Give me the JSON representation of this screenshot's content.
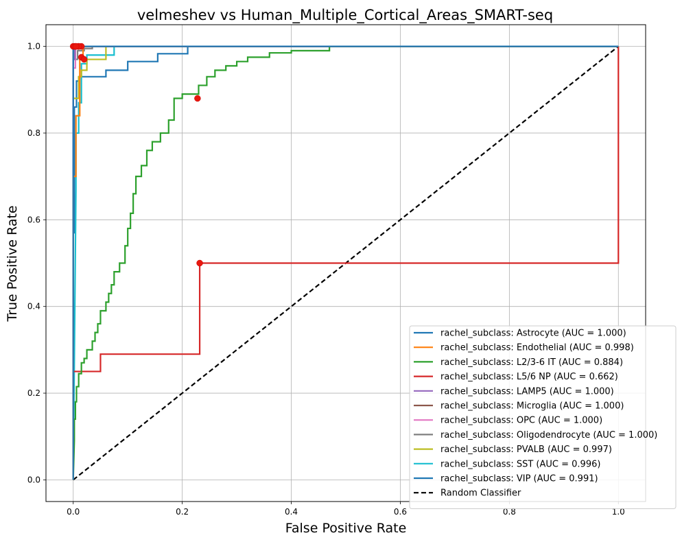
{
  "chart_data": {
    "type": "line",
    "title": "velmeshev vs Human_Multiple_Cortical_Areas_SMART-seq",
    "xlabel": "False Positive Rate",
    "ylabel": "True Positive Rate",
    "xlim": [
      -0.05,
      1.05
    ],
    "ylim": [
      -0.05,
      1.05
    ],
    "xticks": [
      "0.0",
      "0.2",
      "0.4",
      "0.6",
      "0.8",
      "1.0"
    ],
    "yticks": [
      "0.0",
      "0.2",
      "0.4",
      "0.6",
      "0.8",
      "1.0"
    ],
    "grid": true,
    "legend_position": "lower-right",
    "series": [
      {
        "name": "rachel_subclass: Astrocyte (AUC = 1.000)",
        "color": "#1f77b4",
        "x": [
          0,
          0,
          1
        ],
        "y": [
          0,
          1,
          1
        ],
        "optimal_point": [
          0.0,
          1.0
        ]
      },
      {
        "name": "rachel_subclass: Endothelial (AUC = 0.998)",
        "color": "#ff7f0e",
        "x": [
          0,
          0,
          0.005,
          0.005,
          0.012,
          0.012,
          0.018,
          0.018,
          1
        ],
        "y": [
          0,
          0.7,
          0.7,
          0.84,
          0.84,
          0.97,
          0.97,
          1,
          1
        ],
        "optimal_point": [
          0.015,
          0.975
        ]
      },
      {
        "name": "rachel_subclass: L2/3-6 IT (AUC = 0.884)",
        "color": "#2ca02c",
        "x": [
          0,
          0.002,
          0.002,
          0.004,
          0.004,
          0.006,
          0.006,
          0.01,
          0.01,
          0.015,
          0.015,
          0.02,
          0.02,
          0.025,
          0.025,
          0.035,
          0.035,
          0.04,
          0.04,
          0.045,
          0.045,
          0.05,
          0.05,
          0.06,
          0.06,
          0.065,
          0.065,
          0.07,
          0.07,
          0.075,
          0.075,
          0.085,
          0.085,
          0.095,
          0.095,
          0.1,
          0.1,
          0.105,
          0.105,
          0.11,
          0.11,
          0.115,
          0.115,
          0.125,
          0.125,
          0.135,
          0.135,
          0.145,
          0.145,
          0.16,
          0.16,
          0.175,
          0.175,
          0.185,
          0.185,
          0.2,
          0.2,
          0.23,
          0.23,
          0.245,
          0.245,
          0.26,
          0.26,
          0.28,
          0.28,
          0.3,
          0.3,
          0.32,
          0.32,
          0.36,
          0.36,
          0.4,
          0.4,
          0.47,
          0.47,
          0.54,
          0.54,
          0.62,
          0.62,
          0.72,
          0.72,
          0.94,
          0.94,
          1.0
        ],
        "y": [
          0,
          0.09,
          0.14,
          0.14,
          0.18,
          0.18,
          0.215,
          0.215,
          0.245,
          0.245,
          0.27,
          0.27,
          0.28,
          0.28,
          0.3,
          0.3,
          0.32,
          0.32,
          0.34,
          0.34,
          0.36,
          0.36,
          0.39,
          0.39,
          0.41,
          0.41,
          0.43,
          0.43,
          0.45,
          0.45,
          0.48,
          0.48,
          0.5,
          0.5,
          0.54,
          0.54,
          0.58,
          0.58,
          0.615,
          0.615,
          0.66,
          0.66,
          0.7,
          0.7,
          0.725,
          0.725,
          0.76,
          0.76,
          0.78,
          0.78,
          0.8,
          0.8,
          0.83,
          0.83,
          0.88,
          0.88,
          0.89,
          0.89,
          0.91,
          0.91,
          0.93,
          0.93,
          0.945,
          0.945,
          0.955,
          0.955,
          0.965,
          0.965,
          0.975,
          0.975,
          0.985,
          0.985,
          0.99,
          0.99,
          1.0,
          1.0,
          1.0,
          1.0,
          1.0,
          1.0,
          1.0,
          1.0,
          1.0,
          1.0
        ],
        "optimal_point": [
          0.228,
          0.88
        ]
      },
      {
        "name": "rachel_subclass: L5/6 NP (AUC = 0.662)",
        "color": "#d62728",
        "x": [
          0,
          0,
          0.05,
          0.05,
          0.232,
          0.232,
          1.0,
          1.0
        ],
        "y": [
          0,
          0.25,
          0.25,
          0.29,
          0.29,
          0.5,
          0.5,
          1.0
        ],
        "optimal_point": [
          0.232,
          0.5
        ]
      },
      {
        "name": "rachel_subclass: LAMP5 (AUC = 1.000)",
        "color": "#9467bd",
        "x": [
          0,
          0,
          0.003,
          0.003,
          1
        ],
        "y": [
          0,
          0.97,
          0.97,
          1,
          1
        ],
        "optimal_point": [
          0.005,
          1.0
        ]
      },
      {
        "name": "rachel_subclass: Microglia (AUC = 1.000)",
        "color": "#8c564b",
        "x": [
          0,
          0,
          1
        ],
        "y": [
          0,
          1,
          1
        ],
        "optimal_point": [
          0.003,
          1.0
        ]
      },
      {
        "name": "rachel_subclass: OPC (AUC = 1.000)",
        "color": "#e377c2",
        "x": [
          0,
          0,
          0.004,
          0.004,
          1
        ],
        "y": [
          0,
          0.95,
          0.95,
          1,
          1
        ],
        "optimal_point": [
          0.01,
          1.0
        ]
      },
      {
        "name": "rachel_subclass: Oligodendrocyte (AUC = 1.000)",
        "color": "#7f7f7f",
        "x": [
          0,
          0,
          0.008,
          0.008,
          0.02,
          0.02,
          0.035,
          0.035,
          1
        ],
        "y": [
          0,
          0.97,
          0.97,
          0.99,
          0.99,
          0.995,
          0.995,
          1,
          1
        ],
        "optimal_point": [
          0.015,
          1.0
        ]
      },
      {
        "name": "rachel_subclass: PVALB (AUC = 0.997)",
        "color": "#bcbd22",
        "x": [
          0,
          0,
          0.01,
          0.01,
          0.015,
          0.015,
          0.025,
          0.025,
          0.06,
          0.06,
          1
        ],
        "y": [
          0,
          0.88,
          0.88,
          0.93,
          0.93,
          0.945,
          0.945,
          0.97,
          0.97,
          1,
          1
        ],
        "optimal_point": [
          0.02,
          0.97
        ]
      },
      {
        "name": "rachel_subclass: SST (AUC = 0.996)",
        "color": "#17becf",
        "x": [
          0,
          0.005,
          0.005,
          0.01,
          0.01,
          0.015,
          0.015,
          0.025,
          0.025,
          0.075,
          0.075,
          1
        ],
        "y": [
          0,
          0.67,
          0.8,
          0.8,
          0.87,
          0.87,
          0.96,
          0.96,
          0.98,
          0.98,
          1,
          1
        ],
        "optimal_point": [
          0.01,
          1.0
        ]
      },
      {
        "name": "rachel_subclass: VIP (AUC = 0.991)",
        "color": "#1f77b4",
        "x": [
          0,
          0,
          0.002,
          0.002,
          0.006,
          0.006,
          0.01,
          0.01,
          0.06,
          0.06,
          0.1,
          0.1,
          0.155,
          0.155,
          0.21,
          0.21,
          1
        ],
        "y": [
          0,
          0.57,
          0.57,
          0.86,
          0.86,
          0.92,
          0.92,
          0.93,
          0.93,
          0.945,
          0.945,
          0.965,
          0.965,
          0.983,
          0.983,
          1,
          1
        ],
        "optimal_point": [
          0.005,
          1.0
        ]
      },
      {
        "name": "Random Classifier",
        "color": "#000000",
        "dashed": true,
        "x": [
          0,
          1
        ],
        "y": [
          0,
          1
        ]
      }
    ]
  }
}
